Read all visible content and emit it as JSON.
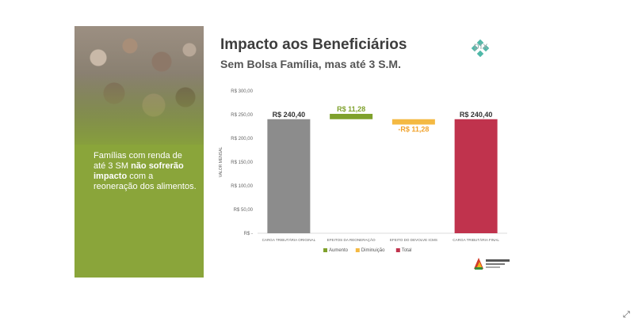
{
  "slide": {
    "title": "Impacto aos Beneficiários",
    "subtitle": "Sem Bolsa Família, mas até 3 S.M.",
    "panel": {
      "line1": "Famílias com renda de até 3 SM ",
      "bold": "não sofrerão impacto",
      "line2": " com a reoneração dos alimentos."
    },
    "logo_pix": "pix",
    "logo_rs": "RIO GRANDE DO SUL"
  },
  "chart_data": {
    "type": "bar",
    "subtype": "waterfall",
    "categories": [
      "CARGA TRIBUTÁRIA ORIGINAL",
      "EFEITOS DA REONERAÇÃO",
      "EFEITO DO DEVOLVE ICMS",
      "CARGA TRIBUTÁRIA FINAL"
    ],
    "bars": [
      {
        "category": "CARGA TRIBUTÁRIA ORIGINAL",
        "kind": "Total",
        "base": 0,
        "value": 240.4,
        "label": "R$ 240,40"
      },
      {
        "category": "EFEITOS DA REONERAÇÃO",
        "kind": "Aumento",
        "base": 240.4,
        "value": 11.28,
        "label": "R$ 11,28"
      },
      {
        "category": "EFEITO DO DEVOLVE ICMS",
        "kind": "Diminuição",
        "base": 240.4,
        "value": 11.28,
        "label": "-R$ 11,28"
      },
      {
        "category": "CARGA TRIBUTÁRIA FINAL",
        "kind": "Total",
        "base": 0,
        "value": 240.4,
        "label": "R$ 240,40"
      }
    ],
    "ylabel": "VALOR MENSAL",
    "ylim": [
      0,
      300
    ],
    "yticks": [
      0,
      50,
      100,
      150,
      200,
      250,
      300
    ],
    "ytick_labels": [
      "R$ -",
      "R$ 50,00",
      "R$ 100,00",
      "R$ 150,00",
      "R$ 200,00",
      "R$ 250,00",
      "R$ 300,00"
    ],
    "legend": [
      {
        "name": "Aumento",
        "color": "#7fa12c"
      },
      {
        "name": "Diminuição",
        "color": "#f4b942"
      },
      {
        "name": "Total",
        "color": "#c0334d"
      }
    ],
    "legend_position": "bottom",
    "colors": {
      "Total-original": "#8c8c8c",
      "Aumento": "#7fa12c",
      "Diminuição": "#f4b942",
      "Total": "#c0334d"
    }
  }
}
